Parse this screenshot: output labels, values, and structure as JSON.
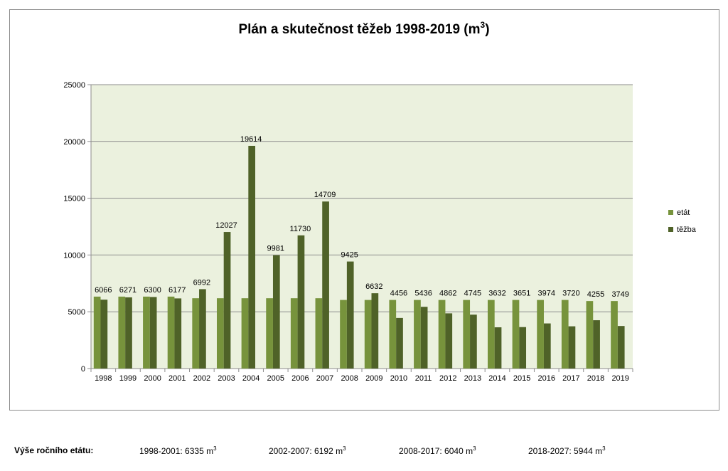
{
  "chart_data": {
    "type": "bar",
    "title": "Plán a skutečnost těžeb 1998-2019 (m",
    "title_superscript": "3",
    "title_suffix": ")",
    "categories": [
      "1998",
      "1999",
      "2000",
      "2001",
      "2002",
      "2003",
      "2004",
      "2005",
      "2006",
      "2007",
      "2008",
      "2009",
      "2010",
      "2011",
      "2012",
      "2013",
      "2014",
      "2015",
      "2016",
      "2017",
      "2018",
      "2019"
    ],
    "series": [
      {
        "name": "etát",
        "color": "#77933c",
        "values": [
          6335,
          6335,
          6335,
          6335,
          6192,
          6192,
          6192,
          6192,
          6192,
          6192,
          6040,
          6040,
          6040,
          6040,
          6040,
          6040,
          6040,
          6040,
          6040,
          6040,
          5944,
          5944
        ]
      },
      {
        "name": "těžba",
        "color": "#4f6228",
        "values": [
          6066,
          6271,
          6300,
          6177,
          6992,
          12027,
          19614,
          9981,
          11730,
          14709,
          9425,
          6632,
          4456,
          5436,
          4862,
          4745,
          3632,
          3651,
          3974,
          3720,
          4255,
          3749
        ]
      }
    ],
    "data_labels": [
      "6066",
      "6271",
      "6300",
      "6177",
      "6992",
      "12027",
      "19614",
      "9981",
      "11730",
      "14709",
      "9425",
      "6632",
      "4456",
      "5436",
      "4862",
      "4745",
      "3632",
      "3651",
      "3974",
      "3720",
      "4255",
      "3749"
    ],
    "ylim": [
      0,
      25000
    ],
    "yticks": [
      "0",
      "5000",
      "10000",
      "15000",
      "20000",
      "25000"
    ],
    "grid": true,
    "plot_background": "#ebf1de",
    "legend_position": "right"
  },
  "footer": {
    "label": "Výše ročního etátu:",
    "periods": [
      {
        "text": "1998-2001: 6335 m",
        "sup": "3"
      },
      {
        "text": "2002-2007: 6192 m",
        "sup": "3"
      },
      {
        "text": "2008-2017: 6040 m",
        "sup": "3"
      },
      {
        "text": "2018-2027: 5944 m",
        "sup": "3"
      }
    ]
  }
}
